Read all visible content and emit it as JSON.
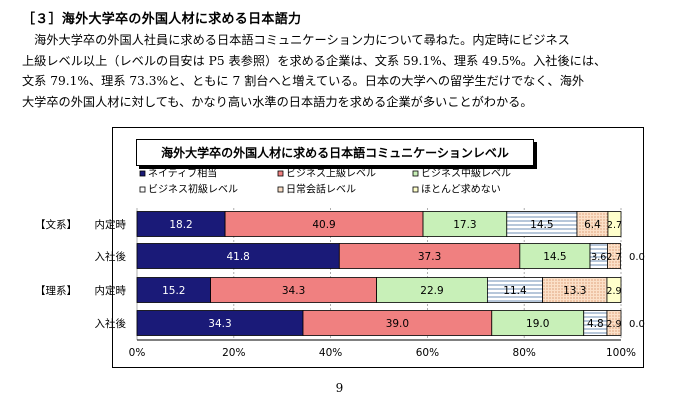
{
  "heading": "［３］海外大学卒の外国人材に求める日本語力",
  "paragraph_lines": [
    "　海外大学卒の外国人社員に求める日本語コミュニケーション力について尋ねた。内定時にビジネス",
    "上級レベル以上（レベルの目安は P5 表参照）を求める企業は、文系 59.1%、理系 49.5%。入社後には、",
    "文系 79.1%、理系 73.3%と、ともに 7 割台へと増えている。日本の大学への留学生だけでなく、海外",
    "大学卒の外国人材に対しても、かなり高い水準の日本語力を求める企業が多いことがわかる。"
  ],
  "page_number": "9",
  "colors": {
    "native": "#1a1a78",
    "business_advanced": "#f08080",
    "business_intermediate": "#c8f0b8",
    "business_beginner": "#ffffff",
    "daily": "#fbe0c8",
    "almost_none": "#ffffcc",
    "hatch": "#6f8fb4",
    "dots": "#d08050"
  },
  "chart_data": {
    "type": "bar",
    "orientation": "horizontal",
    "stacked": true,
    "title": "海外大学卒の外国人材に求める日本語コミュニケーションレベル",
    "group_labels": [
      "【文系】",
      "【理系】"
    ],
    "categories": [
      "内定時",
      "入社後",
      "内定時",
      "入社後"
    ],
    "series": [
      {
        "name": "ネイティブ相当",
        "values": [
          18.2,
          41.8,
          15.2,
          34.3
        ]
      },
      {
        "name": "ビジネス上級レベル",
        "values": [
          40.9,
          37.3,
          34.3,
          39.0
        ]
      },
      {
        "name": "ビジネス中級レベル",
        "values": [
          17.3,
          14.5,
          22.9,
          19.0
        ]
      },
      {
        "name": "ビジネス初級レベル",
        "values": [
          14.5,
          3.6,
          11.4,
          4.8
        ]
      },
      {
        "name": "日常会話レベル",
        "values": [
          6.4,
          2.7,
          13.3,
          2.9
        ]
      },
      {
        "name": "ほとんど求めない",
        "values": [
          2.7,
          0.0,
          2.9,
          0.0
        ]
      }
    ],
    "xlim": [
      0,
      100
    ],
    "xticks": [
      "0%",
      "20%",
      "40%",
      "60%",
      "80%",
      "100%"
    ],
    "grid": true,
    "legend": "top"
  }
}
